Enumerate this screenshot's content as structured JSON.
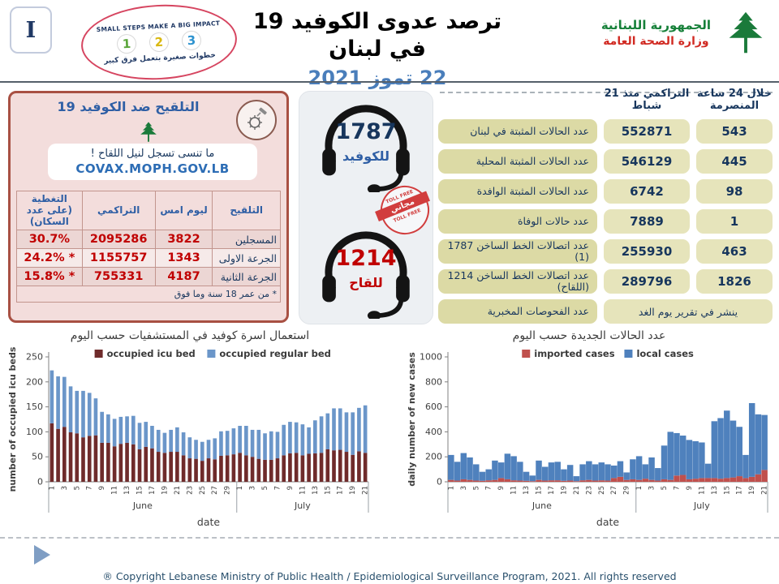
{
  "header": {
    "slide_marker": "I",
    "poster": {
      "top_text": "SMALL STEPS MAKE A BIG IMPACT",
      "steps": [
        "1",
        "2",
        "3"
      ],
      "bottom_text": "خطوات صغيرة بتعمل فرق كبير"
    },
    "title": "ترصد عدوى الكوفيد 19 في لبنان",
    "date": "22 تموز 2021",
    "ministry": {
      "line1": "الجمهورية اللبنانية",
      "line2": "وزارة الصحة العامة"
    }
  },
  "vaccination": {
    "title": "التلقيح ضد الكوفيد 19",
    "reminder": "ما تنسى تسجل لنيل اللقاح !",
    "site": "COVAX.MOPH.GOV.LB",
    "table": {
      "headers": [
        "التلقيح",
        "ليوم امس",
        "التراكمي",
        "التغطية (على عدد السكان)"
      ],
      "rows": [
        {
          "label": "المسجلين",
          "yesterday": "3822",
          "cumulative": "2095286",
          "coverage": "30.7%"
        },
        {
          "label": "الجرعة الاولى",
          "yesterday": "1343",
          "cumulative": "1155757",
          "coverage": "* 24.2%"
        },
        {
          "label": "الجرعة الثانية",
          "yesterday": "4187",
          "cumulative": "755331",
          "coverage": "* 15.8%"
        }
      ],
      "footnote": "* من عمر 18 سنة وما فوق"
    }
  },
  "hotlines": {
    "covid": {
      "number": "1787",
      "label": "للكوفيد"
    },
    "vaccine": {
      "number": "1214",
      "label": "للقاح"
    },
    "stamp": {
      "arc": "TOLL FREE",
      "banner": "مجاني"
    }
  },
  "stats": {
    "col_last24": "خلال 24 ساعة المنصرمة",
    "col_cumulative": "التراكمي منذ 21 شباط",
    "rows": [
      {
        "label": "عدد الحالات المثبتة في لبنان",
        "cumulative": "552871",
        "last24": "543"
      },
      {
        "label": "عدد الحالات المثبتة المحلية",
        "cumulative": "546129",
        "last24": "445"
      },
      {
        "label": "عدد الحالات المثبتة الوافدة",
        "cumulative": "6742",
        "last24": "98"
      },
      {
        "label": "عدد حالات الوفاة",
        "cumulative": "7889",
        "last24": "1"
      },
      {
        "label": "عدد اتصالات الخط الساخن 1787 (1)",
        "cumulative": "255930",
        "last24": "463"
      },
      {
        "label": "عدد اتصالات الخط الساخن 1214 (اللقاح)",
        "cumulative": "289796",
        "last24": "1826"
      }
    ],
    "lab_row": {
      "label": "عدد الفحوصات المخبرية",
      "note": "ينشر في تقرير يوم الغد"
    }
  },
  "chart_data": [
    {
      "type": "bar",
      "stacked": true,
      "title": "استعمال اسرة كوفيد في المستشفيات حسب اليوم",
      "ylabel": "number of occupied icu beds",
      "xlabel": "date",
      "ylim": [
        0,
        250
      ],
      "ytick_step": 50,
      "legend_position": "top",
      "bar_fill_ratio": 0.6,
      "months": [
        {
          "name": "June",
          "days": 30
        },
        {
          "name": "July",
          "days": 21
        }
      ],
      "series": [
        {
          "name": "occupied icu bed",
          "color": "#6f2b2b",
          "values": [
            117,
            106,
            110,
            99,
            97,
            89,
            92,
            93,
            78,
            78,
            71,
            76,
            78,
            75,
            65,
            70,
            67,
            60,
            58,
            60,
            60,
            53,
            47,
            46,
            42,
            47,
            45,
            52,
            53,
            55,
            58,
            53,
            50,
            46,
            44,
            44,
            47,
            53,
            57,
            58,
            53,
            56,
            57,
            58,
            65,
            63,
            64,
            60,
            54,
            61,
            58
          ]
        },
        {
          "name": "occupied regular bed",
          "color": "#6b96c9",
          "values": [
            106,
            105,
            100,
            92,
            85,
            93,
            86,
            74,
            62,
            57,
            55,
            54,
            53,
            57,
            53,
            50,
            45,
            44,
            40,
            44,
            49,
            46,
            42,
            38,
            38,
            37,
            42,
            49,
            49,
            52,
            54,
            59,
            54,
            58,
            53,
            57,
            53,
            61,
            63,
            61,
            62,
            53,
            66,
            73,
            72,
            84,
            83,
            79,
            85,
            87,
            95
          ]
        }
      ]
    },
    {
      "type": "bar",
      "stacked": true,
      "title": "عدد الحالات الجديدة حسب اليوم",
      "ylabel": "daily number of new cases",
      "xlabel": "date",
      "ylim": [
        0,
        1000
      ],
      "ytick_step": 200,
      "legend_position": "top",
      "bar_fill_ratio": 0.97,
      "months": [
        {
          "name": "June",
          "days": 30
        },
        {
          "name": "July",
          "days": 21
        }
      ],
      "series": [
        {
          "name": "imported cases",
          "color": "#c0504d",
          "values": [
            15,
            10,
            20,
            15,
            10,
            8,
            12,
            15,
            30,
            20,
            12,
            10,
            8,
            5,
            15,
            10,
            12,
            12,
            8,
            10,
            5,
            12,
            15,
            10,
            12,
            10,
            30,
            40,
            15,
            20,
            15,
            25,
            15,
            10,
            20,
            15,
            50,
            55,
            20,
            25,
            30,
            30,
            30,
            25,
            30,
            35,
            45,
            30,
            40,
            60,
            95
          ]
        },
        {
          "name": "local cases",
          "color": "#4f81bd",
          "values": [
            200,
            150,
            210,
            180,
            130,
            72,
            88,
            155,
            125,
            205,
            193,
            150,
            72,
            45,
            155,
            110,
            143,
            148,
            92,
            125,
            40,
            128,
            150,
            130,
            143,
            130,
            100,
            125,
            60,
            160,
            190,
            115,
            180,
            100,
            270,
            385,
            340,
            315,
            315,
            300,
            285,
            115,
            455,
            485,
            540,
            455,
            395,
            185,
            590,
            480,
            440
          ]
        }
      ]
    }
  ],
  "footer": {
    "copyright": "® Copyright Lebanese Ministry of Public Health / Epidemiological Surveillance Program, 2021. All rights reserved"
  },
  "colors": {
    "navy": "#17365d",
    "blue_accent": "#2f5fa5",
    "red_value": "#c00000",
    "panel_pink": "#f3dddc",
    "panel_pink_border": "#a85043",
    "stat_label_bg": "#dcdaa5",
    "stat_value_bg": "#e6e4bb",
    "date_blue": "#4a7ebb",
    "ministry_green": "#168039",
    "ministry_red": "#d12b23"
  }
}
